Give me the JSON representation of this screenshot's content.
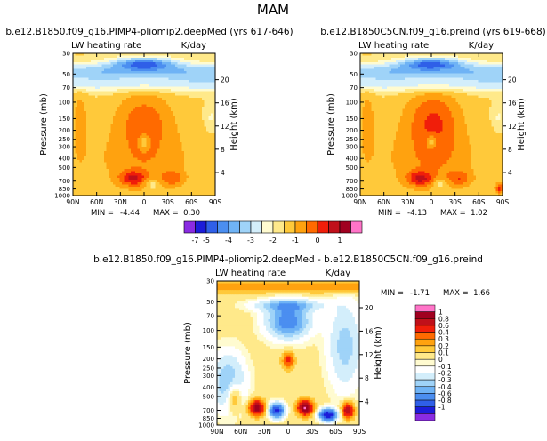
{
  "page_title": "MAM",
  "colors": {
    "levels_main": [
      "#8a2be2",
      "#1c1cd9",
      "#2f5fe8",
      "#4b8ef0",
      "#6fb3f5",
      "#9fd3f8",
      "#d3eefb",
      "#fffbd0",
      "#ffe98a",
      "#ffc93a",
      "#ffa20f",
      "#ff6a00",
      "#f01e0a",
      "#c0101a",
      "#a00020",
      "#ff74c8"
    ],
    "levels_diff": [
      "#8a2be2",
      "#1c1cd9",
      "#2f5fe8",
      "#4b8ef0",
      "#6fb3f5",
      "#9fd3f8",
      "#d3eefb",
      "#ffffff",
      "#fffbd0",
      "#ffe98a",
      "#ffc93a",
      "#ffa20f",
      "#ff6a00",
      "#f01e0a",
      "#c0101a",
      "#a00020",
      "#ff74c8"
    ]
  },
  "chart_data": [
    {
      "type": "heatmap",
      "id": "panel-1",
      "title": "b.e12.B1850.f09_g16.PIMP4-pliomip2.deepMed (yrs 617-646)",
      "left_label": "LW heating rate",
      "right_label": "K/day",
      "ylabel": "Pressure (mb)",
      "ylabel_right": "Height (km)",
      "xlabel": "",
      "x_ticks": [
        "90N",
        "60N",
        "30N",
        "0",
        "30S",
        "60S",
        "90S"
      ],
      "x_values": [
        90,
        60,
        30,
        0,
        -30,
        -60,
        -90
      ],
      "y_ticks": [
        "1000",
        "850",
        "700",
        "500",
        "400",
        "300",
        "250",
        "200",
        "150",
        "100",
        "70",
        "50",
        "30"
      ],
      "y_values": [
        1000,
        850,
        700,
        500,
        400,
        300,
        250,
        200,
        150,
        100,
        70,
        50,
        30
      ],
      "height_ticks": [
        "20",
        "16",
        "12",
        "8",
        "4"
      ],
      "height_values": [
        20,
        16,
        12,
        8,
        4
      ],
      "ylim": [
        1000,
        30
      ],
      "min_label": "MIN =",
      "min_value": "-4.44",
      "max_label": "MAX =",
      "max_value": "0.30"
    },
    {
      "type": "heatmap",
      "id": "panel-2",
      "title": "b.e12.B1850C5CN.f09_g16.preind (yrs 619-668)",
      "left_label": "LW heating rate",
      "right_label": "K/day",
      "ylabel": "Pressure (mb)",
      "ylabel_right": "Height (km)",
      "x_ticks": [
        "90N",
        "60N",
        "30N",
        "0",
        "30S",
        "60S",
        "90S"
      ],
      "x_values": [
        90,
        60,
        30,
        0,
        -30,
        -60,
        -90
      ],
      "y_ticks": [
        "1000",
        "850",
        "700",
        "500",
        "400",
        "300",
        "250",
        "200",
        "150",
        "100",
        "70",
        "50",
        "30"
      ],
      "y_values": [
        1000,
        850,
        700,
        500,
        400,
        300,
        250,
        200,
        150,
        100,
        70,
        50,
        30
      ],
      "height_ticks": [
        "20",
        "16",
        "12",
        "8",
        "4"
      ],
      "height_values": [
        20,
        16,
        12,
        8,
        4
      ],
      "ylim": [
        1000,
        30
      ],
      "min_label": "MIN =",
      "min_value": "-4.13",
      "max_label": "MAX =",
      "max_value": "1.02"
    },
    {
      "type": "heatmap",
      "id": "panel-diff",
      "title": "b.e12.B1850.f09_g16.PIMP4-pliomip2.deepMed - b.e12.B1850C5CN.f09_g16.preind",
      "left_label": "LW heating rate",
      "right_label": "K/day",
      "ylabel": "Pressure (mb)",
      "ylabel_right": "Height (km)",
      "x_ticks": [
        "90N",
        "60N",
        "30N",
        "0",
        "30S",
        "60S",
        "90S"
      ],
      "x_values": [
        90,
        60,
        30,
        0,
        -30,
        -60,
        -90
      ],
      "y_ticks": [
        "1000",
        "850",
        "700",
        "500",
        "400",
        "300",
        "250",
        "200",
        "150",
        "100",
        "70",
        "50",
        "30"
      ],
      "y_values": [
        1000,
        850,
        700,
        500,
        400,
        300,
        250,
        200,
        150,
        100,
        70,
        50,
        30
      ],
      "height_ticks": [
        "20",
        "16",
        "12",
        "8",
        "4"
      ],
      "height_values": [
        20,
        16,
        12,
        8,
        4
      ],
      "ylim": [
        1000,
        30
      ],
      "min_label": "MIN =",
      "min_value": "-1.71",
      "max_label": "MAX =",
      "max_value": "1.66"
    }
  ],
  "colorbar_main": {
    "labels": [
      "-7",
      "-5",
      "-4",
      "-3",
      "-2",
      "-1",
      "0",
      "1"
    ],
    "label_index": [
      1,
      2,
      4,
      6,
      8,
      10,
      12,
      14
    ]
  },
  "colorbar_diff": {
    "labels": [
      "1",
      "0.8",
      "0.6",
      "0.4",
      "0.3",
      "0.2",
      "0.1",
      "0",
      "-0.1",
      "-0.2",
      "-0.3",
      "-0.4",
      "-0.6",
      "-0.8",
      "-1"
    ]
  }
}
